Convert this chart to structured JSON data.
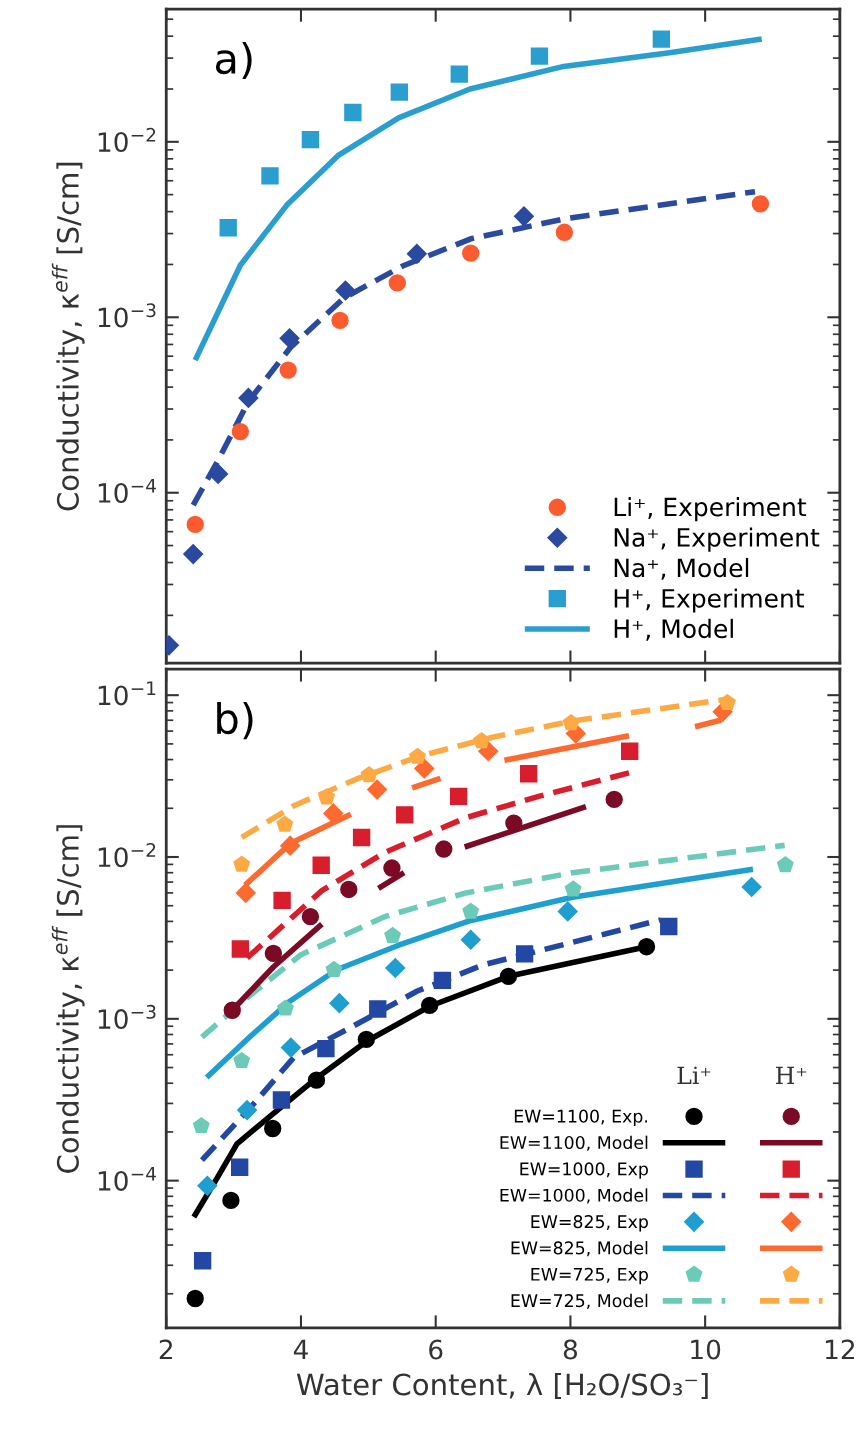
{
  "chart_data": [
    {
      "type": "line",
      "ylabel": "Conductivity, κ$^{eff}$ [S/cm]",
      "annotations": [
        "a)"
      ],
      "log": "y",
      "legend": "bottom right",
      "tick_labels": "y",
      "grid": false,
      "xlim": [
        2,
        12
      ],
      "xticks": [
        2,
        4,
        6,
        8,
        10,
        12
      ],
      "ylim": [
        1.07e-05,
        0.057
      ],
      "yticks": [
        {
          "value": 0.0001,
          "label": "10$^{−4}$"
        },
        {
          "value": 0.001,
          "label": "10$^{−3}$"
        },
        {
          "value": 0.01,
          "label": "10$^{−2}$"
        }
      ],
      "series": [
        {
          "name": "Li⁺, Experiment",
          "type": "scatter",
          "marker": "circle",
          "color": "#fc5a2f",
          "x": [
            2.43,
            3.1,
            3.81,
            4.58,
            5.43,
            6.52,
            7.91,
            10.82
          ],
          "values": [
            6.6e-05,
            0.000223,
            0.0005,
            0.00096,
            0.00157,
            0.00232,
            0.00305,
            0.00443
          ]
        },
        {
          "name": "Na⁺, Experiment",
          "type": "scatter",
          "marker": "diamond",
          "color": "#2a4aa0",
          "x": [
            2.04,
            2.4,
            2.77,
            3.22,
            3.83,
            4.66,
            5.72,
            7.31
          ],
          "values": [
            1.35e-05,
            4.47e-05,
            0.000128,
            0.000347,
            0.00076,
            0.00142,
            0.0023,
            0.00376
          ]
        },
        {
          "name": "Na⁺, Model",
          "line_style": "dashed",
          "color": "#2a4aa0",
          "x": [
            2.4,
            2.77,
            3.22,
            3.84,
            4.64,
            5.51,
            6.52,
            7.93,
            10.74
          ],
          "values": [
            8.5e-05,
            0.000153,
            0.000331,
            0.00067,
            0.00129,
            0.00196,
            0.0028,
            0.00365,
            0.0052
          ]
        },
        {
          "name": "H⁺, Experiment",
          "type": "scatter",
          "marker": "square",
          "color": "#2a9fcf",
          "x": [
            2.92,
            3.54,
            4.14,
            4.77,
            5.46,
            6.35,
            7.54,
            9.35
          ],
          "values": [
            0.00324,
            0.0064,
            0.0103,
            0.0147,
            0.0192,
            0.0243,
            0.0308,
            0.0385
          ]
        },
        {
          "name": "H⁺, Model",
          "line_style": "solid",
          "color": "#2a9fcf",
          "x": [
            2.43,
            3.1,
            3.79,
            4.56,
            5.45,
            6.51,
            7.9,
            9.47,
            10.84
          ],
          "values": [
            0.00057,
            0.00198,
            0.00436,
            0.0084,
            0.0137,
            0.02,
            0.0269,
            0.0322,
            0.0385
          ]
        }
      ]
    },
    {
      "type": "line",
      "ylabel": "Conductivity, κ$^{eff}$ [S/cm]",
      "xlabel": "Water Content, λ [H₂O/SO₃⁻]",
      "annotations": [
        "b)",
        "Li⁺",
        "H⁺"
      ],
      "log": "y",
      "legend": "bottom right",
      "grid": false,
      "xlim": [
        2,
        12
      ],
      "xticks": [
        2,
        4,
        6,
        8,
        10,
        12
      ],
      "ylim": [
        1.23e-05,
        0.145
      ],
      "yticks": [
        {
          "value": 0.0001,
          "label": "10$^{−4}$"
        },
        {
          "value": 0.001,
          "label": "10$^{−3}$"
        },
        {
          "value": 0.01,
          "label": "10$^{−2}$"
        },
        {
          "value": 0.1,
          "label": "10$^{−1}$"
        }
      ],
      "series": [
        {
          "name": "EW=1100, Exp.",
          "type": "scatter",
          "marker": "circle",
          "color": "#000000",
          "x": [
            2.43,
            2.96,
            3.58,
            4.23,
            4.97,
            5.91,
            7.08,
            9.13
          ],
          "values": [
            1.87e-05,
            7.55e-05,
            0.00021,
            0.000418,
            0.000747,
            0.00121,
            0.00183,
            0.00279
          ]
        },
        {
          "name": "EW=1100, Model",
          "line_style": "solid",
          "color": "#000000",
          "x": [
            2.41,
            2.75,
            3.05,
            3.58,
            4.24,
            4.98,
            5.92,
            7.08,
            9.13
          ],
          "values": [
            5.96e-05,
            0.000103,
            0.000169,
            0.000258,
            0.000433,
            0.00073,
            0.0012,
            0.00183,
            0.00279
          ]
        },
        {
          "name": "EW=1000, Exp",
          "type": "scatter",
          "marker": "square",
          "color": "#2348a3",
          "x": [
            2.54,
            3.09,
            3.71,
            4.37,
            5.14,
            6.1,
            7.32,
            9.46
          ],
          "values": [
            3.2e-05,
            0.000121,
            0.000315,
            0.000654,
            0.00115,
            0.00173,
            0.00252,
            0.00372
          ]
        },
        {
          "name": "EW=1000, Model",
          "line_style": "dashed",
          "color": "#2348a3",
          "x": [
            2.53,
            3.25,
            3.89,
            4.73,
            5.72,
            6.71,
            7.39,
            9.34
          ],
          "values": [
            0.000134,
            0.000283,
            0.000575,
            0.00088,
            0.00148,
            0.00216,
            0.00254,
            0.00409
          ]
        },
        {
          "name": "EW=825, Exp",
          "type": "scatter",
          "marker": "diamond",
          "color": "#1f9fcf",
          "x": [
            2.61,
            3.2,
            3.85,
            4.57,
            5.4,
            6.52,
            7.96,
            10.69
          ],
          "values": [
            9.3e-05,
            0.000273,
            0.000664,
            0.00125,
            0.00206,
            0.00308,
            0.00461,
            0.00653
          ]
        },
        {
          "name": "EW=825, Model",
          "line_style": "solid",
          "color": "#1f9fcf",
          "x": [
            2.6,
            3.25,
            3.84,
            4.53,
            5.45,
            6.49,
            8.03,
            10.71
          ],
          "values": [
            0.000434,
            0.00078,
            0.00129,
            0.00201,
            0.00285,
            0.00402,
            0.00564,
            0.0084
          ]
        },
        {
          "name": "EW=725, Exp",
          "type": "scatter",
          "color": "#6ccbb8",
          "x": [
            2.52,
            3.12,
            3.77,
            4.49,
            5.36,
            6.52,
            8.04,
            11.19
          ],
          "values": [
            0.000218,
            0.00055,
            0.00116,
            0.00201,
            0.00326,
            0.00461,
            0.00632,
            0.00893
          ]
        },
        {
          "name": "EW=725, Model",
          "line_style": "dashed",
          "color": "#6ccbb8",
          "x": [
            2.53,
            3.2,
            4.0,
            5.25,
            6.45,
            8.03,
            11.18
          ],
          "values": [
            0.00077,
            0.00135,
            0.00249,
            0.00429,
            0.006,
            0.008,
            0.0118
          ]
        },
        {
          "type": "scatter",
          "marker": "circle",
          "color": "#7b0a25",
          "x": [
            2.98,
            3.59,
            4.14,
            4.71,
            5.35,
            6.12,
            7.16,
            8.65
          ],
          "values": [
            0.00113,
            0.00254,
            0.00428,
            0.0063,
            0.00855,
            0.0112,
            0.0162,
            0.0227
          ]
        },
        {
          "line_style": "solid",
          "color": "#7b0a25",
          "x": [
            2.98,
            3.59,
            4.31,
            4.7,
            5.15,
            5.53,
            6.0,
            6.43,
            8.23
          ],
          "values": [
            0.00113,
            0.00209,
            0.00385,
            null,
            0.0064,
            0.008,
            null,
            0.01153,
            0.0205
          ]
        },
        {
          "type": "scatter",
          "marker": "square",
          "color": "#d81e2c",
          "x": [
            3.1,
            3.72,
            4.3,
            4.9,
            5.54,
            6.34,
            7.38,
            8.88
          ],
          "values": [
            0.0027,
            0.0054,
            0.0089,
            0.0132,
            0.0182,
            0.0237,
            0.0327,
            0.045
          ]
        },
        {
          "line_style": "dashed",
          "color": "#d81e2c",
          "x": [
            3.2,
            4.31,
            5.25,
            6.45,
            7.53,
            8.87
          ],
          "values": [
            0.00238,
            0.0062,
            0.0107,
            0.0175,
            0.0237,
            0.0331
          ]
        },
        {
          "type": "scatter",
          "marker": "diamond",
          "color": "#fc6a30",
          "x": [
            3.18,
            3.84,
            4.48,
            5.13,
            5.83,
            6.78,
            8.08,
            10.26
          ],
          "values": [
            0.006,
            0.01175,
            0.0186,
            0.0261,
            0.0352,
            0.045,
            0.058,
            0.0789
          ]
        },
        {
          "line_style": "solid",
          "color": "#fc6a30",
          "x": [
            3.17,
            3.84,
            4.74,
            5.2,
            5.65,
            6.07,
            6.5,
            7.02,
            8.87,
            9.4,
            9.85,
            10.24
          ],
          "values": [
            0.0067,
            0.0121,
            0.0184,
            null,
            0.0267,
            0.0306,
            null,
            0.0396,
            0.0562,
            null,
            0.0638,
            0.0703
          ]
        },
        {
          "type": "scatter",
          "color": "#fdaa45",
          "x": [
            3.12,
            3.76,
            4.38,
            5.01,
            5.73,
            6.68,
            8.01,
            10.33
          ],
          "values": [
            0.009,
            0.0159,
            0.0234,
            0.0321,
            0.0417,
            0.0521,
            0.0673,
            0.0897
          ]
        },
        {
          "line_style": "dashed",
          "color": "#fdaa45",
          "x": [
            3.12,
            3.91,
            4.85,
            5.78,
            6.86,
            8.06,
            10.27
          ],
          "values": [
            0.0132,
            0.0209,
            0.0306,
            0.0422,
            0.0552,
            0.0695,
            0.0938
          ]
        }
      ]
    }
  ]
}
